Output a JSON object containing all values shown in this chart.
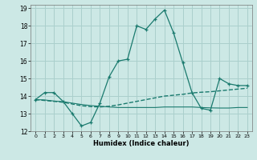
{
  "xlabel": "Humidex (Indice chaleur)",
  "xlim": [
    -0.5,
    23.5
  ],
  "ylim": [
    12,
    19.2
  ],
  "yticks": [
    12,
    13,
    14,
    15,
    16,
    17,
    18,
    19
  ],
  "xticks": [
    0,
    1,
    2,
    3,
    4,
    5,
    6,
    7,
    8,
    9,
    10,
    11,
    12,
    13,
    14,
    15,
    16,
    17,
    18,
    19,
    20,
    21,
    22,
    23
  ],
  "background_color": "#cce8e5",
  "grid_color": "#aacfcc",
  "line_color": "#1a7a6e",
  "line1_x": [
    0,
    1,
    2,
    3,
    4,
    5,
    6,
    7,
    8,
    9,
    10,
    11,
    12,
    13,
    14,
    15,
    16,
    17,
    18,
    19,
    20,
    21,
    22,
    23
  ],
  "line1_y": [
    13.8,
    14.2,
    14.2,
    13.7,
    13.0,
    12.3,
    12.5,
    13.6,
    15.1,
    16.0,
    16.1,
    18.0,
    17.8,
    18.4,
    18.9,
    17.6,
    15.9,
    14.2,
    13.3,
    13.2,
    15.0,
    14.7,
    14.6,
    14.6
  ],
  "line2_x": [
    0,
    1,
    2,
    3,
    4,
    5,
    6,
    7,
    8,
    9,
    10,
    11,
    12,
    13,
    14,
    15,
    16,
    17,
    18,
    19,
    20,
    21,
    22,
    23
  ],
  "line2_y": [
    13.8,
    13.75,
    13.7,
    13.65,
    13.55,
    13.45,
    13.4,
    13.38,
    13.42,
    13.5,
    13.6,
    13.7,
    13.8,
    13.9,
    14.0,
    14.05,
    14.1,
    14.18,
    14.22,
    14.25,
    14.3,
    14.35,
    14.4,
    14.45
  ],
  "line3_x": [
    0,
    1,
    2,
    3,
    4,
    5,
    6,
    7,
    8,
    9,
    10,
    11,
    12,
    13,
    14,
    15,
    16,
    17,
    18,
    19,
    20,
    21,
    22,
    23
  ],
  "line3_y": [
    13.8,
    13.78,
    13.72,
    13.68,
    13.6,
    13.52,
    13.46,
    13.42,
    13.38,
    13.35,
    13.35,
    13.35,
    13.35,
    13.35,
    13.38,
    13.38,
    13.38,
    13.38,
    13.35,
    13.33,
    13.32,
    13.32,
    13.35,
    13.35
  ]
}
